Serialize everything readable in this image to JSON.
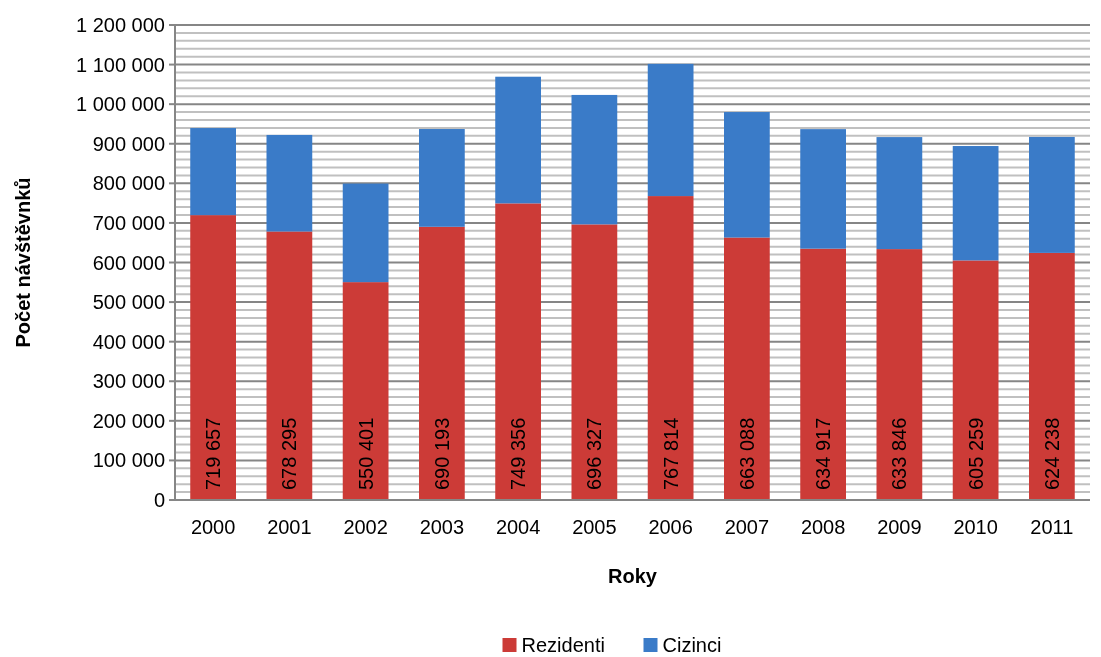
{
  "chart_data": {
    "type": "bar",
    "stacked": true,
    "xlabel": "Roky",
    "ylabel": "Počet návštěvnků",
    "categories": [
      "2000",
      "2001",
      "2002",
      "2003",
      "2004",
      "2005",
      "2006",
      "2007",
      "2008",
      "2009",
      "2010",
      "2011"
    ],
    "series": [
      {
        "name": "Rezidenti",
        "color": "#cc3b37",
        "values": [
          719657,
          678295,
          550401,
          690193,
          749356,
          696327,
          767814,
          663088,
          634917,
          633846,
          605259,
          624238
        ],
        "value_labels": [
          "719 657",
          "678 295",
          "550 401",
          "690 193",
          "749 356",
          "696 327",
          "767 814",
          "663 088",
          "634 917",
          "633 846",
          "605 259",
          "624 238"
        ]
      },
      {
        "name": "Cizinci",
        "color": "#3a7bc8",
        "values": [
          220000,
          244000,
          249000,
          247000,
          320000,
          327000,
          334000,
          317000,
          302000,
          283000,
          289000,
          293000
        ]
      }
    ],
    "ylim": [
      0,
      1200000
    ],
    "yticks": [
      {
        "value": 0,
        "label": "0"
      },
      {
        "value": 20000,
        "label": null
      },
      {
        "value": 40000,
        "label": null
      },
      {
        "value": 60000,
        "label": null
      },
      {
        "value": 80000,
        "label": null
      },
      {
        "value": 100000,
        "label": "100 000"
      },
      {
        "value": 120000,
        "label": null
      },
      {
        "value": 140000,
        "label": null
      },
      {
        "value": 160000,
        "label": null
      },
      {
        "value": 180000,
        "label": null
      },
      {
        "value": 200000,
        "label": "200 000"
      },
      {
        "value": 220000,
        "label": null
      },
      {
        "value": 240000,
        "label": null
      },
      {
        "value": 260000,
        "label": null
      },
      {
        "value": 280000,
        "label": null
      },
      {
        "value": 300000,
        "label": "300 000"
      },
      {
        "value": 320000,
        "label": null
      },
      {
        "value": 340000,
        "label": null
      },
      {
        "value": 360000,
        "label": null
      },
      {
        "value": 380000,
        "label": null
      },
      {
        "value": 400000,
        "label": "400 000"
      },
      {
        "value": 420000,
        "label": null
      },
      {
        "value": 440000,
        "label": null
      },
      {
        "value": 460000,
        "label": null
      },
      {
        "value": 480000,
        "label": null
      },
      {
        "value": 500000,
        "label": "500 000"
      },
      {
        "value": 520000,
        "label": null
      },
      {
        "value": 540000,
        "label": null
      },
      {
        "value": 560000,
        "label": null
      },
      {
        "value": 580000,
        "label": null
      },
      {
        "value": 600000,
        "label": "600 000"
      },
      {
        "value": 620000,
        "label": null
      },
      {
        "value": 640000,
        "label": null
      },
      {
        "value": 660000,
        "label": null
      },
      {
        "value": 680000,
        "label": null
      },
      {
        "value": 700000,
        "label": "700 000"
      },
      {
        "value": 720000,
        "label": null
      },
      {
        "value": 740000,
        "label": null
      },
      {
        "value": 760000,
        "label": null
      },
      {
        "value": 780000,
        "label": null
      },
      {
        "value": 800000,
        "label": "800 000"
      },
      {
        "value": 820000,
        "label": null
      },
      {
        "value": 840000,
        "label": null
      },
      {
        "value": 860000,
        "label": null
      },
      {
        "value": 880000,
        "label": null
      },
      {
        "value": 900000,
        "label": "900 000"
      },
      {
        "value": 920000,
        "label": null
      },
      {
        "value": 940000,
        "label": null
      },
      {
        "value": 960000,
        "label": null
      },
      {
        "value": 980000,
        "label": null
      },
      {
        "value": 1000000,
        "label": "1 000 000"
      },
      {
        "value": 1020000,
        "label": null
      },
      {
        "value": 1040000,
        "label": null
      },
      {
        "value": 1060000,
        "label": null
      },
      {
        "value": 1080000,
        "label": null
      },
      {
        "value": 1100000,
        "label": "1 100 000"
      },
      {
        "value": 1120000,
        "label": null
      },
      {
        "value": 1140000,
        "label": null
      },
      {
        "value": 1160000,
        "label": null
      },
      {
        "value": 1180000,
        "label": null
      },
      {
        "value": 1200000,
        "label": "1 200 000"
      }
    ],
    "grid": true,
    "legend": "bottom"
  }
}
